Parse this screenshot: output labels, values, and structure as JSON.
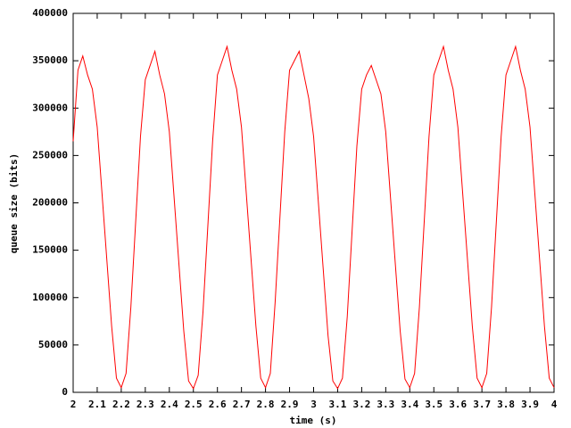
{
  "chart_data": {
    "type": "line",
    "xlabel": "time (s)",
    "ylabel": "queue size (bits)",
    "xlim": [
      2,
      4
    ],
    "ylim": [
      0,
      400000
    ],
    "xticks": [
      2,
      2.1,
      2.2,
      2.3,
      2.4,
      2.5,
      2.6,
      2.7,
      2.8,
      2.9,
      3,
      3.1,
      3.2,
      3.3,
      3.4,
      3.5,
      3.6,
      3.7,
      3.8,
      3.9,
      4
    ],
    "yticks": [
      0,
      50000,
      100000,
      150000,
      200000,
      250000,
      300000,
      350000,
      400000
    ],
    "grid": false,
    "x": [
      2,
      2.02,
      2.04,
      2.06,
      2.08,
      2.1,
      2.12,
      2.14,
      2.16,
      2.18,
      2.2,
      2.22,
      2.24,
      2.26,
      2.28,
      2.3,
      2.32,
      2.34,
      2.36,
      2.38,
      2.4,
      2.42,
      2.44,
      2.46,
      2.48,
      2.5,
      2.52,
      2.54,
      2.56,
      2.58,
      2.6,
      2.62,
      2.64,
      2.66,
      2.68,
      2.7,
      2.72,
      2.74,
      2.76,
      2.78,
      2.8,
      2.82,
      2.84,
      2.86,
      2.88,
      2.9,
      2.92,
      2.94,
      2.96,
      2.98,
      3,
      3.02,
      3.04,
      3.06,
      3.08,
      3.1,
      3.12,
      3.14,
      3.16,
      3.18,
      3.2,
      3.22,
      3.24,
      3.26,
      3.28,
      3.3,
      3.32,
      3.34,
      3.36,
      3.38,
      3.4,
      3.42,
      3.44,
      3.46,
      3.48,
      3.5,
      3.52,
      3.54,
      3.56,
      3.58,
      3.6,
      3.62,
      3.64,
      3.66,
      3.68,
      3.7,
      3.72,
      3.74,
      3.76,
      3.78,
      3.8,
      3.82,
      3.84,
      3.86,
      3.88,
      3.9,
      3.92,
      3.94,
      3.96,
      3.98,
      4
    ],
    "series": [
      {
        "color": "#ff0000",
        "values": [
          265000,
          340000,
          355000,
          335000,
          320000,
          280000,
          210000,
          140000,
          70000,
          15000,
          5000,
          20000,
          90000,
          180000,
          270000,
          330000,
          345000,
          360000,
          335000,
          315000,
          275000,
          205000,
          135000,
          65000,
          12000,
          4000,
          18000,
          85000,
          175000,
          265000,
          335000,
          350000,
          365000,
          340000,
          320000,
          280000,
          210000,
          140000,
          70000,
          15000,
          5000,
          20000,
          95000,
          185000,
          275000,
          340000,
          350000,
          360000,
          335000,
          310000,
          270000,
          200000,
          130000,
          60000,
          12000,
          4000,
          15000,
          80000,
          170000,
          260000,
          320000,
          335000,
          345000,
          330000,
          315000,
          275000,
          205000,
          135000,
          65000,
          14000,
          5000,
          20000,
          90000,
          180000,
          270000,
          335000,
          350000,
          365000,
          340000,
          320000,
          280000,
          210000,
          140000,
          70000,
          15000,
          5000,
          20000,
          90000,
          180000,
          270000,
          335000,
          350000,
          365000,
          340000,
          320000,
          280000,
          210000,
          140000,
          70000,
          15000,
          5000
        ]
      }
    ]
  }
}
